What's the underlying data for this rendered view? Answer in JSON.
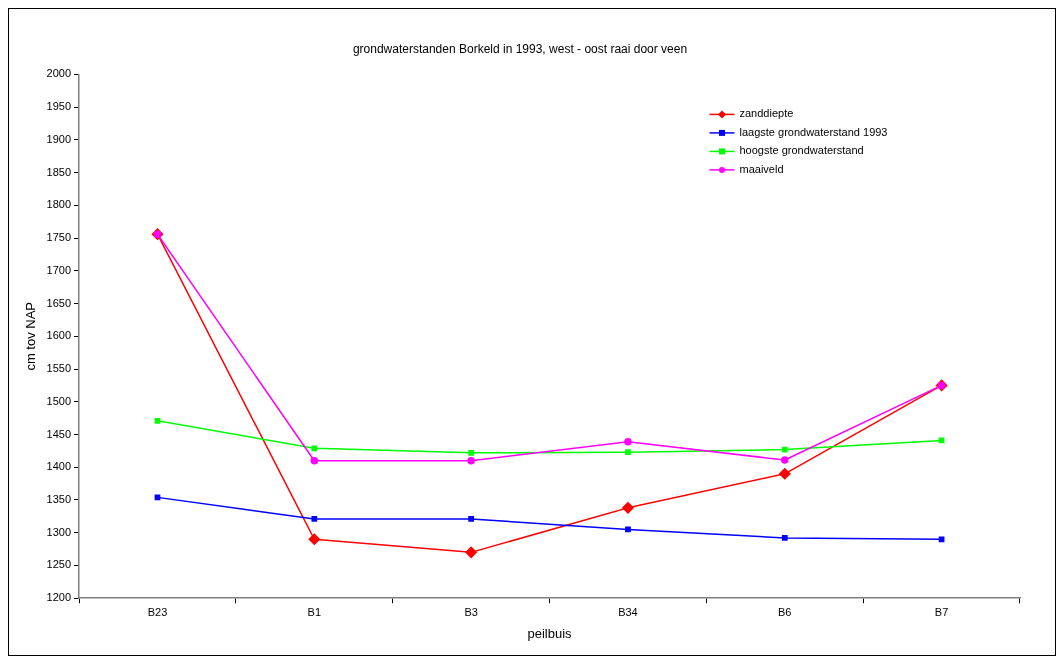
{
  "chart_data": {
    "type": "line",
    "title": "grondwaterstanden Borkeld in 1993, west - oost raai door veen",
    "xlabel": "peilbuis",
    "ylabel": "cm tov NAP",
    "categories": [
      "B23",
      "B1",
      "B3",
      "B34",
      "B6",
      "B7"
    ],
    "series": [
      {
        "name": "zanddiepte",
        "color": "#ff0000",
        "marker": "diamond",
        "values": [
          1756,
          1290,
          1270,
          1338,
          1390,
          1525
        ]
      },
      {
        "name": "laagste grondwaterstand 1993",
        "color": "#0000ff",
        "marker": "square",
        "values": [
          1354,
          1321,
          1321,
          1305,
          1292,
          1290
        ]
      },
      {
        "name": "hoogste grondwaterstand",
        "color": "#00ff00",
        "marker": "square",
        "values": [
          1471,
          1429,
          1422,
          1423,
          1427,
          1441
        ]
      },
      {
        "name": "maaiveld",
        "color": "#ff00ff",
        "marker": "circle",
        "values": [
          1756,
          1410,
          1410,
          1439,
          1411,
          1525
        ]
      }
    ],
    "ylim": [
      1200,
      2000
    ],
    "yticks": [
      1200,
      1250,
      1300,
      1350,
      1400,
      1450,
      1500,
      1550,
      1600,
      1650,
      1700,
      1750,
      1800,
      1850,
      1900,
      1950,
      2000
    ],
    "grid": false,
    "legend": "top right",
    "line_style": "solid"
  }
}
